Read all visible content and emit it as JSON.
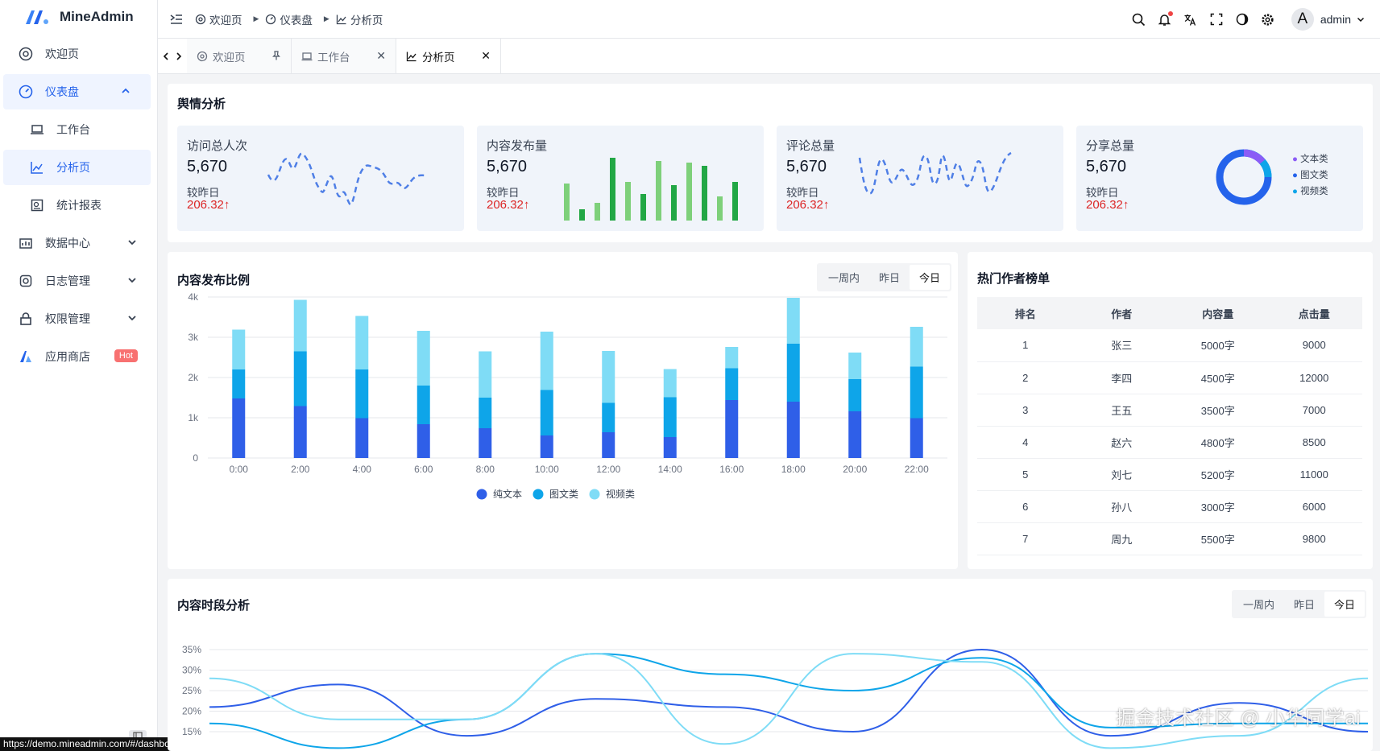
{
  "app": {
    "name": "MineAdmin"
  },
  "sidebar": {
    "items": [
      {
        "label": "欢迎页",
        "icon": "welcome-icon"
      },
      {
        "label": "仪表盘",
        "icon": "dashboard-icon",
        "expanded": true
      },
      {
        "label": "工作台",
        "icon": "laptop-icon",
        "sub": true
      },
      {
        "label": "分析页",
        "icon": "chart-line-icon",
        "sub": true,
        "active": true
      },
      {
        "label": "统计报表",
        "icon": "report-icon",
        "sub": true
      },
      {
        "label": "数据中心",
        "icon": "data-center-icon"
      },
      {
        "label": "日志管理",
        "icon": "log-icon"
      },
      {
        "label": "权限管理",
        "icon": "lock-icon"
      },
      {
        "label": "应用商店",
        "icon": "app-store-icon",
        "badge": "Hot"
      }
    ]
  },
  "header": {
    "breadcrumb": [
      "欢迎页",
      "仪表盘",
      "分析页"
    ],
    "username": "admin",
    "avatar_letter": "A"
  },
  "tabs": [
    {
      "label": "欢迎页",
      "pinned": true
    },
    {
      "label": "工作台",
      "closable": true
    },
    {
      "label": "分析页",
      "closable": true,
      "active": true
    }
  ],
  "sentiment": {
    "title": "舆情分析",
    "cards": [
      {
        "label": "访问总人次",
        "value": "5,670",
        "compare": "较昨日",
        "delta": "206.32",
        "chart": "line"
      },
      {
        "label": "内容发布量",
        "value": "5,670",
        "compare": "较昨日",
        "delta": "206.32",
        "chart": "bar"
      },
      {
        "label": "评论总量",
        "value": "5,670",
        "compare": "较昨日",
        "delta": "206.32",
        "chart": "line"
      },
      {
        "label": "分享总量",
        "value": "5,670",
        "compare": "较昨日",
        "delta": "206.32",
        "chart": "donut",
        "legend": [
          "文本类",
          "图文类",
          "视频类"
        ]
      }
    ]
  },
  "ratio_panel": {
    "title": "内容发布比例",
    "segments": [
      "一周内",
      "昨日",
      "今日"
    ],
    "selected": "今日"
  },
  "ranking": {
    "title": "热门作者榜单",
    "columns": [
      "排名",
      "作者",
      "内容量",
      "点击量"
    ],
    "rows": [
      [
        "1",
        "张三",
        "5000字",
        "9000"
      ],
      [
        "2",
        "李四",
        "4500字",
        "12000"
      ],
      [
        "3",
        "王五",
        "3500字",
        "7000"
      ],
      [
        "4",
        "赵六",
        "4800字",
        "8500"
      ],
      [
        "5",
        "刘七",
        "5200字",
        "11000"
      ],
      [
        "6",
        "孙八",
        "3000字",
        "6000"
      ],
      [
        "7",
        "周九",
        "5500字",
        "9800"
      ]
    ]
  },
  "period_panel": {
    "title": "内容时段分析",
    "segments": [
      "一周内",
      "昨日",
      "今日"
    ],
    "selected": "今日"
  },
  "status_url": "https://demo.mineadmin.com/#/dashboard/workbench",
  "watermark": "掘金技术社区 @ 小华同学ai",
  "colors": {
    "primary": "#2563eb",
    "text_series": "#2f5fe8",
    "image_series": "#0ea5e9",
    "video_series": "#7fdcf6",
    "delta_red": "#dc2626",
    "bar_green": "#22a745"
  },
  "chart_data": [
    {
      "type": "bar",
      "stacked": true,
      "categories": [
        "0:00",
        "2:00",
        "4:00",
        "6:00",
        "8:00",
        "10:00",
        "12:00",
        "14:00",
        "16:00",
        "18:00",
        "20:00",
        "22:00"
      ],
      "y_ticks": [
        "0",
        "1k",
        "2k",
        "3k",
        "4k"
      ],
      "ylim": [
        0,
        4000
      ],
      "legend_position": "bottom",
      "series": [
        {
          "name": "纯文本",
          "values": [
            1480,
            1290,
            990,
            840,
            740,
            560,
            640,
            520,
            1440,
            1400,
            1160,
            990
          ]
        },
        {
          "name": "图文类",
          "values": [
            720,
            1360,
            1210,
            960,
            760,
            1130,
            730,
            990,
            790,
            1440,
            800,
            1280
          ]
        },
        {
          "name": "视频类",
          "values": [
            990,
            1280,
            1330,
            1360,
            1150,
            1450,
            1290,
            700,
            530,
            1140,
            660,
            990
          ]
        }
      ]
    },
    {
      "type": "line",
      "smooth": true,
      "y_ticks": [
        "15%",
        "20%",
        "25%",
        "30%",
        "35%"
      ],
      "ylim": [
        10,
        35
      ],
      "series": [
        {
          "values": [
            21,
            26.5,
            14,
            23,
            21,
            15,
            35,
            14,
            22,
            15
          ]
        },
        {
          "values": [
            17,
            11,
            18,
            34,
            29,
            25,
            33,
            16,
            17,
            17
          ]
        },
        {
          "values": [
            28,
            18,
            18,
            34,
            12,
            34,
            32,
            11,
            14,
            28
          ]
        }
      ]
    }
  ]
}
